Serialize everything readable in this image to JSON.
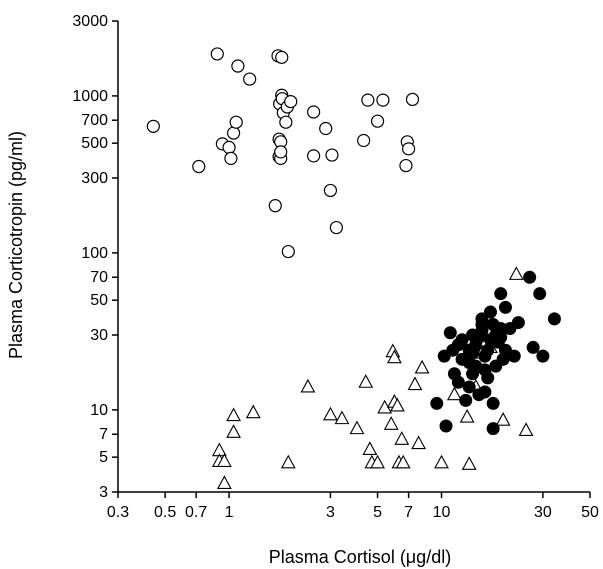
{
  "chart_data": {
    "type": "scatter",
    "title": "",
    "xlabel": "Plasma Cortisol (μg/dl)",
    "ylabel": "Plasma Corticotropin (pg/ml)",
    "xscale": "log",
    "yscale": "log",
    "xlim": [
      0.3,
      50
    ],
    "ylim": [
      3,
      3000
    ],
    "grid": false,
    "xticks": [
      0.3,
      0.5,
      0.7,
      1,
      3,
      5,
      7,
      10,
      30,
      50
    ],
    "xtick_labels": [
      "0.3",
      "0.5",
      "0.7",
      "1",
      "3",
      "5",
      "7",
      "10",
      "30",
      "50"
    ],
    "yticks": [
      3,
      5,
      7,
      10,
      30,
      50,
      70,
      100,
      300,
      500,
      700,
      1000,
      3000
    ],
    "ytick_labels": [
      "3",
      "5",
      "7",
      "10",
      "30",
      "50",
      "70",
      "100",
      "300",
      "500",
      "700",
      "1000",
      "3000"
    ],
    "series": [
      {
        "marker": "open-circle",
        "points": [
          [
            0.44,
            640
          ],
          [
            0.72,
            355
          ],
          [
            0.88,
            1850
          ],
          [
            0.93,
            495
          ],
          [
            1.0,
            470
          ],
          [
            1.02,
            400
          ],
          [
            1.05,
            580
          ],
          [
            1.08,
            680
          ],
          [
            1.1,
            1550
          ],
          [
            1.25,
            1280
          ],
          [
            1.7,
            1800
          ],
          [
            1.72,
            530
          ],
          [
            1.72,
            410
          ],
          [
            1.73,
            890
          ],
          [
            1.75,
            400
          ],
          [
            1.75,
            510
          ],
          [
            1.75,
            440
          ],
          [
            1.77,
            1010
          ],
          [
            1.77,
            1760
          ],
          [
            1.78,
            960
          ],
          [
            1.8,
            780
          ],
          [
            1.85,
            680
          ],
          [
            1.88,
            850
          ],
          [
            1.9,
            102
          ],
          [
            1.95,
            920
          ],
          [
            2.5,
            790
          ],
          [
            2.5,
            415
          ],
          [
            2.85,
            620
          ],
          [
            3.0,
            250
          ],
          [
            3.05,
            420
          ],
          [
            3.2,
            145
          ],
          [
            4.3,
            520
          ],
          [
            4.5,
            940
          ],
          [
            5.0,
            690
          ],
          [
            5.3,
            940
          ],
          [
            6.8,
            360
          ],
          [
            6.9,
            510
          ],
          [
            7.0,
            460
          ],
          [
            7.3,
            950
          ],
          [
            1.65,
            200
          ]
        ]
      },
      {
        "marker": "open-triangle",
        "points": [
          [
            0.9,
            5.5
          ],
          [
            0.9,
            4.7
          ],
          [
            0.95,
            4.7
          ],
          [
            0.95,
            3.4
          ],
          [
            1.05,
            7.2
          ],
          [
            1.05,
            9.2
          ],
          [
            1.3,
            9.6
          ],
          [
            1.9,
            4.6
          ],
          [
            2.35,
            14
          ],
          [
            3.0,
            9.3
          ],
          [
            3.4,
            8.8
          ],
          [
            4.0,
            7.6
          ],
          [
            4.4,
            15
          ],
          [
            4.6,
            5.6
          ],
          [
            4.7,
            4.6
          ],
          [
            5.0,
            4.6
          ],
          [
            5.4,
            10.3
          ],
          [
            5.8,
            8.1
          ],
          [
            5.9,
            23.5
          ],
          [
            6.0,
            11.2
          ],
          [
            6.0,
            21.5
          ],
          [
            6.2,
            10.6
          ],
          [
            6.3,
            4.6
          ],
          [
            6.5,
            6.5
          ],
          [
            6.6,
            4.6
          ],
          [
            7.5,
            14.5
          ],
          [
            7.8,
            6.1
          ],
          [
            8.1,
            18.5
          ],
          [
            10.0,
            4.6
          ],
          [
            13.5,
            4.5
          ],
          [
            22.5,
            73
          ],
          [
            25.0,
            7.4
          ],
          [
            13.2,
            9.0
          ],
          [
            14.5,
            14.0
          ],
          [
            15.5,
            23
          ],
          [
            17.0,
            25
          ],
          [
            19.5,
            8.6
          ],
          [
            11.5,
            12.5
          ]
        ]
      },
      {
        "marker": "filled-circle",
        "points": [
          [
            9.5,
            11
          ],
          [
            10.3,
            22
          ],
          [
            10.5,
            7.9
          ],
          [
            11.0,
            31
          ],
          [
            11.3,
            24
          ],
          [
            11.5,
            17
          ],
          [
            12.0,
            26
          ],
          [
            12.5,
            28
          ],
          [
            13.0,
            11.5
          ],
          [
            13.5,
            14
          ],
          [
            13.5,
            20
          ],
          [
            14.0,
            23
          ],
          [
            14.0,
            30
          ],
          [
            14.5,
            19
          ],
          [
            15.0,
            12.5
          ],
          [
            15.5,
            32
          ],
          [
            15.5,
            38
          ],
          [
            15.5,
            35
          ],
          [
            16.0,
            22
          ],
          [
            16.5,
            16
          ],
          [
            16.5,
            24
          ],
          [
            17.0,
            28
          ],
          [
            17.0,
            42
          ],
          [
            17.5,
            11
          ],
          [
            17.5,
            7.6
          ],
          [
            18.0,
            19
          ],
          [
            18.5,
            27
          ],
          [
            19.0,
            33
          ],
          [
            19.0,
            55
          ],
          [
            19.5,
            21
          ],
          [
            20.0,
            24
          ],
          [
            20.0,
            45
          ],
          [
            21.0,
            33
          ],
          [
            22.0,
            22
          ],
          [
            23.0,
            36
          ],
          [
            26.0,
            70
          ],
          [
            27.0,
            25
          ],
          [
            29.0,
            55
          ],
          [
            30.0,
            22
          ],
          [
            34.0,
            38
          ],
          [
            12.0,
            15
          ],
          [
            14.5,
            26
          ],
          [
            16.0,
            18
          ],
          [
            18.0,
            30
          ],
          [
            15.0,
            29
          ],
          [
            13.5,
            24
          ],
          [
            17.5,
            35
          ],
          [
            16.0,
            13
          ],
          [
            12.5,
            21
          ],
          [
            19.0,
            29
          ],
          [
            14.0,
            17
          ]
        ]
      }
    ]
  }
}
